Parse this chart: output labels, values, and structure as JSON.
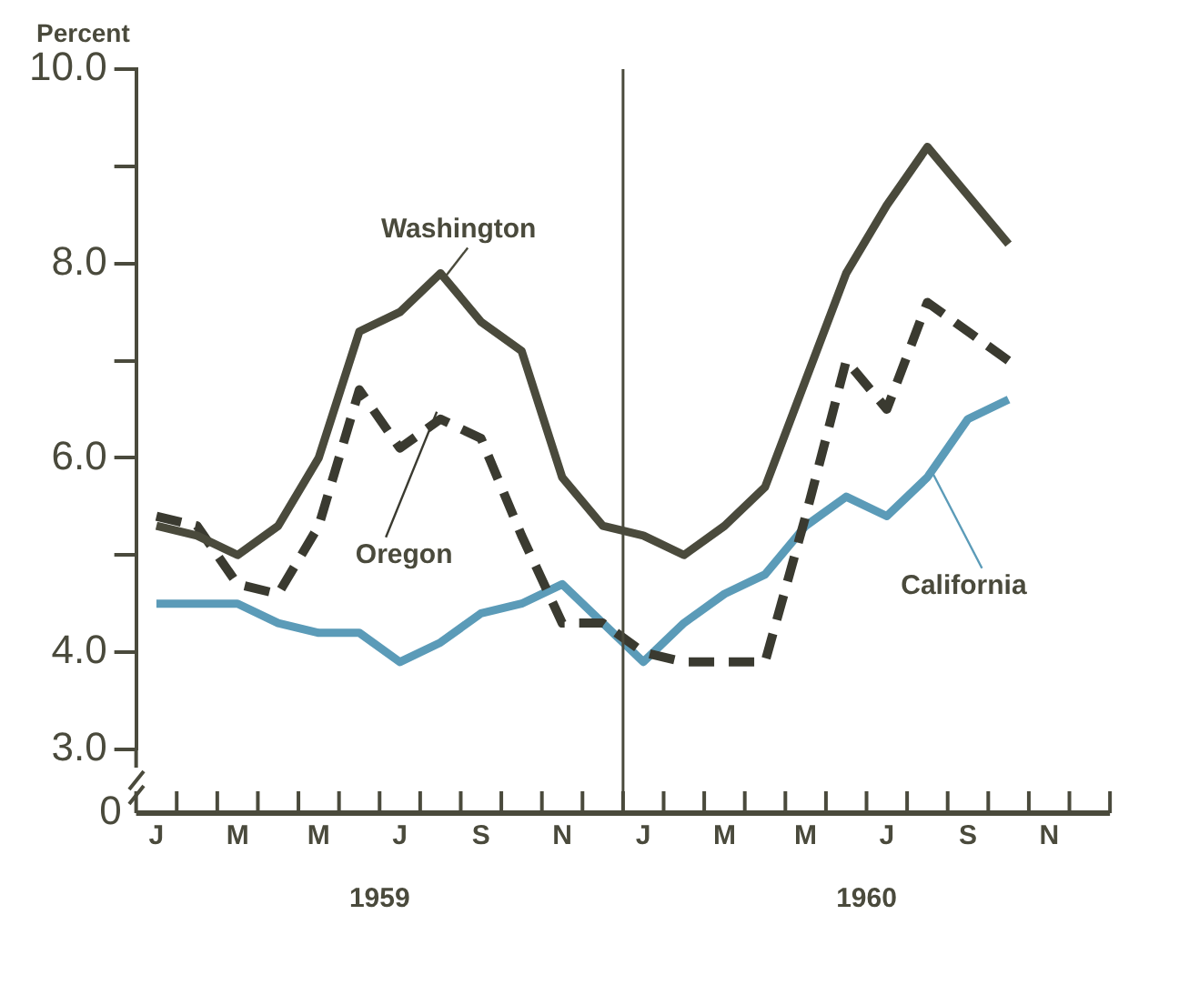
{
  "chart_data": {
    "type": "line",
    "ylabel": "Percent",
    "categories": [
      "J",
      null,
      "M",
      null,
      "M",
      null,
      "J",
      null,
      "S",
      null,
      "N",
      null,
      "J",
      null,
      "M",
      null,
      "M",
      null,
      "J",
      null,
      "S",
      null,
      "N",
      null
    ],
    "series": [
      {
        "name": "Washington",
        "color": "#4a4a3c",
        "line_style": "solid",
        "values": [
          5.3,
          5.2,
          5.0,
          5.3,
          6.0,
          7.3,
          7.5,
          7.9,
          7.4,
          7.1,
          5.8,
          5.3,
          5.2,
          5.0,
          5.3,
          5.7,
          6.8,
          7.9,
          8.6,
          9.2,
          8.7,
          8.2,
          null,
          null
        ]
      },
      {
        "name": "Oregon",
        "color": "#3a3a30",
        "line_style": "dashed",
        "values": [
          5.4,
          5.3,
          4.7,
          4.6,
          5.3,
          6.7,
          6.1,
          6.4,
          6.2,
          5.2,
          4.3,
          4.3,
          4.0,
          3.9,
          3.9,
          3.9,
          5.4,
          7.0,
          6.5,
          7.6,
          7.3,
          7.0,
          null,
          null
        ]
      },
      {
        "name": "California",
        "color": "#5b9bb8",
        "line_style": "solid",
        "values": [
          4.5,
          4.5,
          4.5,
          4.3,
          4.2,
          4.2,
          3.9,
          4.1,
          4.4,
          4.5,
          4.7,
          4.3,
          3.9,
          4.3,
          4.6,
          4.8,
          5.3,
          5.6,
          5.4,
          5.8,
          6.4,
          6.6,
          null,
          null
        ]
      }
    ],
    "ylim": [
      3,
      10
    ],
    "yticks": [
      {
        "value": 3,
        "label": "3.0"
      },
      {
        "value": 4,
        "label": "4.0"
      },
      {
        "value": 5,
        "label": null
      },
      {
        "value": 6,
        "label": "6.0"
      },
      {
        "value": 7,
        "label": null
      },
      {
        "value": 8,
        "label": "8.0"
      },
      {
        "value": 9,
        "label": null
      },
      {
        "value": 10,
        "label": "10.0"
      }
    ],
    "annotations": [
      "1959",
      "1960",
      "0"
    ],
    "grid": false,
    "legend": false,
    "marker": "none"
  }
}
